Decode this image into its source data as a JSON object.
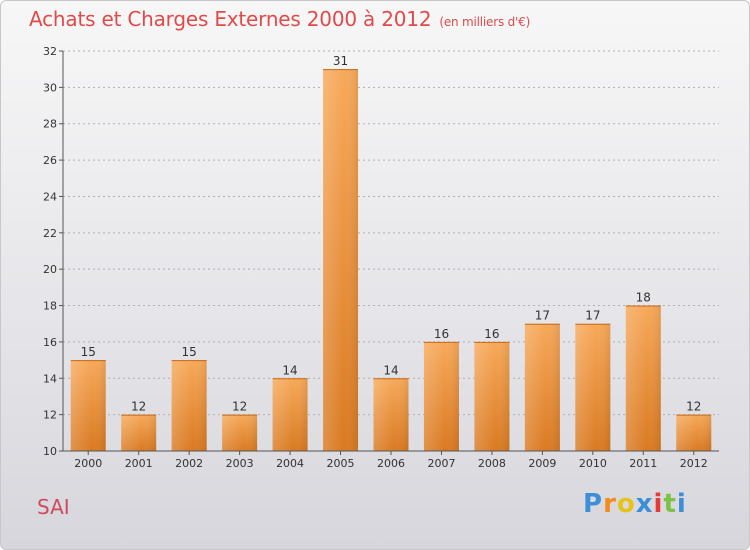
{
  "title": "Achats et Charges Externes 2000 à 2012",
  "subtitle": "(en milliers d'€)",
  "footer_label": "SAI",
  "logo": {
    "text": "Proxiti",
    "letters": [
      "P",
      "r",
      "o",
      "x",
      "i",
      "t",
      "i"
    ]
  },
  "colors": {
    "bar_top": "#f7a95a",
    "bar_bottom": "#d97a22",
    "title": "#e04a4a",
    "grid": "#b0b0b0"
  },
  "chart_data": {
    "type": "bar",
    "title": "Achats et Charges Externes 2000 à 2012",
    "subtitle": "(en milliers d'€)",
    "categories": [
      "2000",
      "2001",
      "2002",
      "2003",
      "2004",
      "2005",
      "2006",
      "2007",
      "2008",
      "2009",
      "2010",
      "2011",
      "2012"
    ],
    "values": [
      15,
      12,
      15,
      12,
      14,
      31,
      14,
      16,
      16,
      17,
      17,
      18,
      12
    ],
    "ylim": [
      10,
      32
    ],
    "yticks": [
      10,
      12,
      14,
      16,
      18,
      20,
      22,
      24,
      26,
      28,
      30,
      32
    ],
    "grid": true,
    "xlabel": "",
    "ylabel": ""
  }
}
